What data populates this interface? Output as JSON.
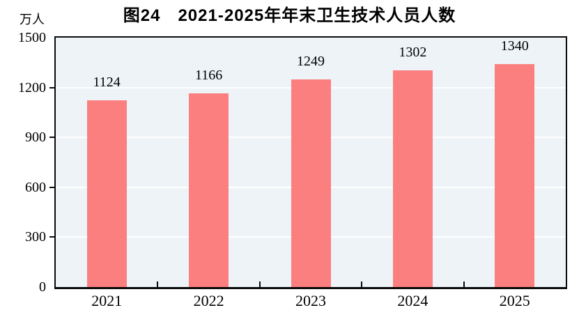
{
  "title": "图24　2021-2025年年末卫生技术人员人数",
  "y_axis_unit": "万人",
  "chart_data": {
    "type": "bar",
    "title": "图24　2021-2025年年末卫生技术人员人数",
    "categories": [
      "2021",
      "2022",
      "2023",
      "2024",
      "2025"
    ],
    "values": [
      1124,
      1166,
      1249,
      1302,
      1340
    ],
    "data_labels": [
      "1124",
      "1166",
      "1249",
      "1302",
      "1340"
    ],
    "xlabel": "",
    "ylabel": "万人",
    "ylim": [
      0,
      1500
    ],
    "yticks": [
      0,
      300,
      600,
      900,
      1200,
      1500
    ],
    "grid": true,
    "legend_position": "none",
    "bar_color": "#FC7F7F",
    "plot_background": "#EDF3F7",
    "gridline_color": "#FFFFFF",
    "axis_color": "#0A0A0A"
  }
}
